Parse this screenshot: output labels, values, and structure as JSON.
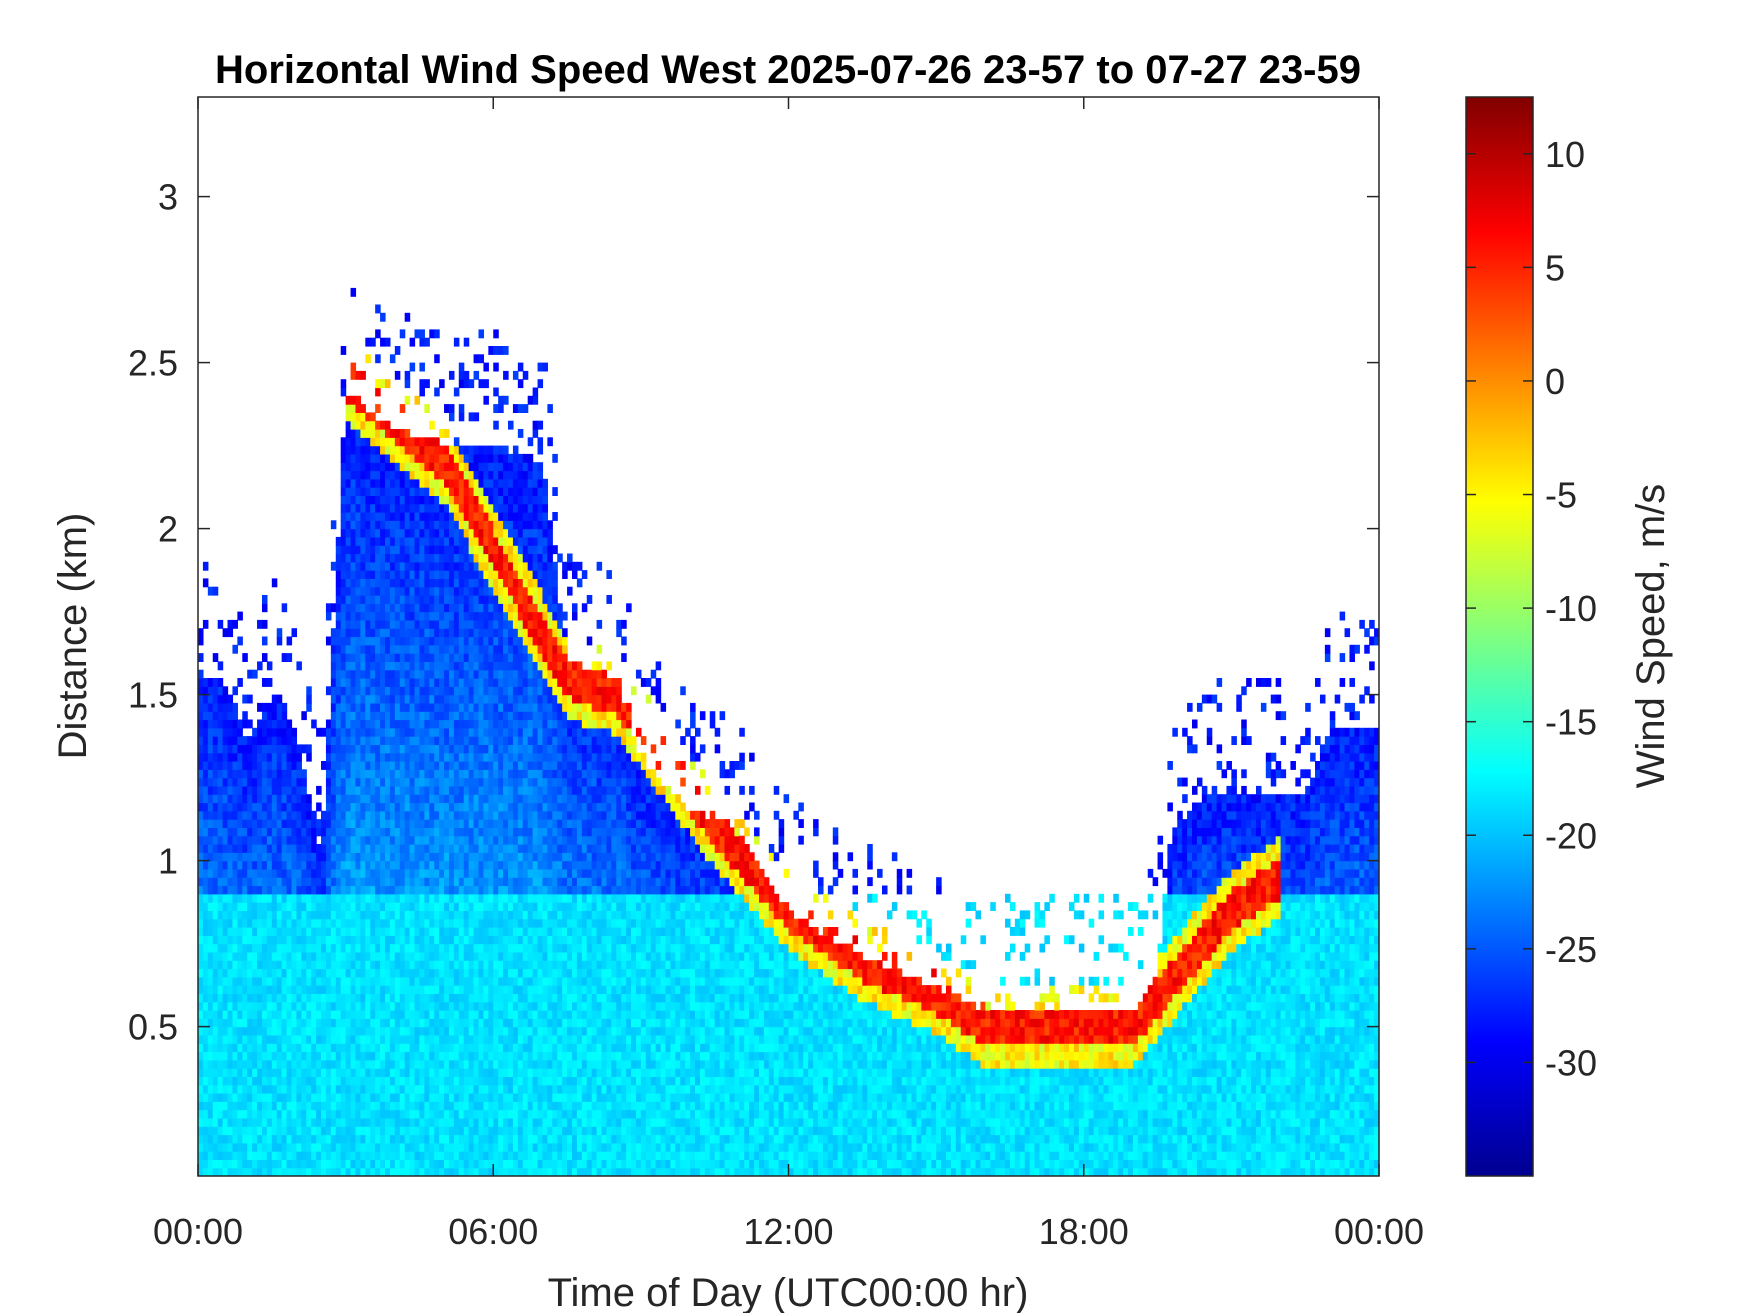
{
  "chart_data": {
    "type": "heatmap",
    "title": "Horizontal Wind Speed West 2025-07-26 23-57 to 07-27 23-59",
    "xlabel": "Time of Day (UTC00:00 hr)",
    "ylabel": "Distance (km)",
    "xlim_hours": [
      0,
      24
    ],
    "ylim": [
      0.05,
      3.3
    ],
    "x_ticks": [
      {
        "value": 0,
        "label": "00:00"
      },
      {
        "value": 6,
        "label": "06:00"
      },
      {
        "value": 12,
        "label": "12:00"
      },
      {
        "value": 18,
        "label": "18:00"
      },
      {
        "value": 24,
        "label": "00:00"
      }
    ],
    "y_ticks": [
      {
        "value": 0.5,
        "label": "0.5"
      },
      {
        "value": 1,
        "label": "1"
      },
      {
        "value": 1.5,
        "label": "1.5"
      },
      {
        "value": 2,
        "label": "2"
      },
      {
        "value": 2.5,
        "label": "2.5"
      },
      {
        "value": 3,
        "label": "3"
      }
    ],
    "colorbar": {
      "label": "Wind Speed, m/s",
      "range": [
        -35,
        12.5
      ],
      "colormap": "jet",
      "ticks": [
        {
          "value": 10,
          "label": "10"
        },
        {
          "value": 5,
          "label": "5"
        },
        {
          "value": 0,
          "label": "0"
        },
        {
          "value": -5,
          "label": "-5"
        },
        {
          "value": -10,
          "label": "-10"
        },
        {
          "value": -15,
          "label": "-15"
        },
        {
          "value": -20,
          "label": "-20"
        },
        {
          "value": -25,
          "label": "-25"
        },
        {
          "value": -30,
          "label": "-30"
        }
      ]
    },
    "data_top_km": [
      {
        "hour": 0.0,
        "top": 1.55
      },
      {
        "hour": 0.5,
        "top": 1.55
      },
      {
        "hour": 1.0,
        "top": 1.35
      },
      {
        "hour": 1.5,
        "top": 1.5
      },
      {
        "hour": 2.0,
        "top": 1.4
      },
      {
        "hour": 2.5,
        "top": 1.0
      },
      {
        "hour": 3.0,
        "top": 2.4
      },
      {
        "hour": 4.0,
        "top": 2.3
      },
      {
        "hour": 5.0,
        "top": 2.25
      },
      {
        "hour": 6.0,
        "top": 2.25
      },
      {
        "hour": 7.0,
        "top": 2.2
      },
      {
        "hour": 7.5,
        "top": 1.6
      },
      {
        "hour": 8.5,
        "top": 1.55
      },
      {
        "hour": 9.0,
        "top": 1.3
      },
      {
        "hour": 10.0,
        "top": 1.15
      },
      {
        "hour": 11.0,
        "top": 1.1
      },
      {
        "hour": 11.5,
        "top": 0.95
      },
      {
        "hour": 12.0,
        "top": 0.85
      },
      {
        "hour": 13.0,
        "top": 0.75
      },
      {
        "hour": 14.0,
        "top": 0.68
      },
      {
        "hour": 15.0,
        "top": 0.62
      },
      {
        "hour": 16.0,
        "top": 0.55
      },
      {
        "hour": 17.0,
        "top": 0.55
      },
      {
        "hour": 18.0,
        "top": 0.55
      },
      {
        "hour": 19.0,
        "top": 0.55
      },
      {
        "hour": 19.5,
        "top": 0.65
      },
      {
        "hour": 19.8,
        "top": 1.1
      },
      {
        "hour": 20.5,
        "top": 1.2
      },
      {
        "hour": 21.5,
        "top": 1.2
      },
      {
        "hour": 22.5,
        "top": 1.2
      },
      {
        "hour": 23.0,
        "top": 1.4
      },
      {
        "hour": 24.0,
        "top": 1.4
      }
    ],
    "jet_maximum_km": [
      {
        "hour": 3.0,
        "height": 2.45
      },
      {
        "hour": 5.0,
        "height": 2.2
      },
      {
        "hour": 7.5,
        "height": 1.55
      },
      {
        "hour": 8.5,
        "height": 1.5
      },
      {
        "hour": 10.5,
        "height": 1.1
      },
      {
        "hour": 12.0,
        "height": 0.85
      },
      {
        "hour": 13.5,
        "height": 0.7
      },
      {
        "hour": 15.0,
        "height": 0.6
      },
      {
        "hour": 16.0,
        "height": 0.5
      },
      {
        "hour": 17.5,
        "height": 0.5
      },
      {
        "hour": 19.0,
        "height": 0.5
      },
      {
        "hour": 21.0,
        "height": 0.85
      },
      {
        "hour": 22.0,
        "height": 0.95
      }
    ]
  }
}
